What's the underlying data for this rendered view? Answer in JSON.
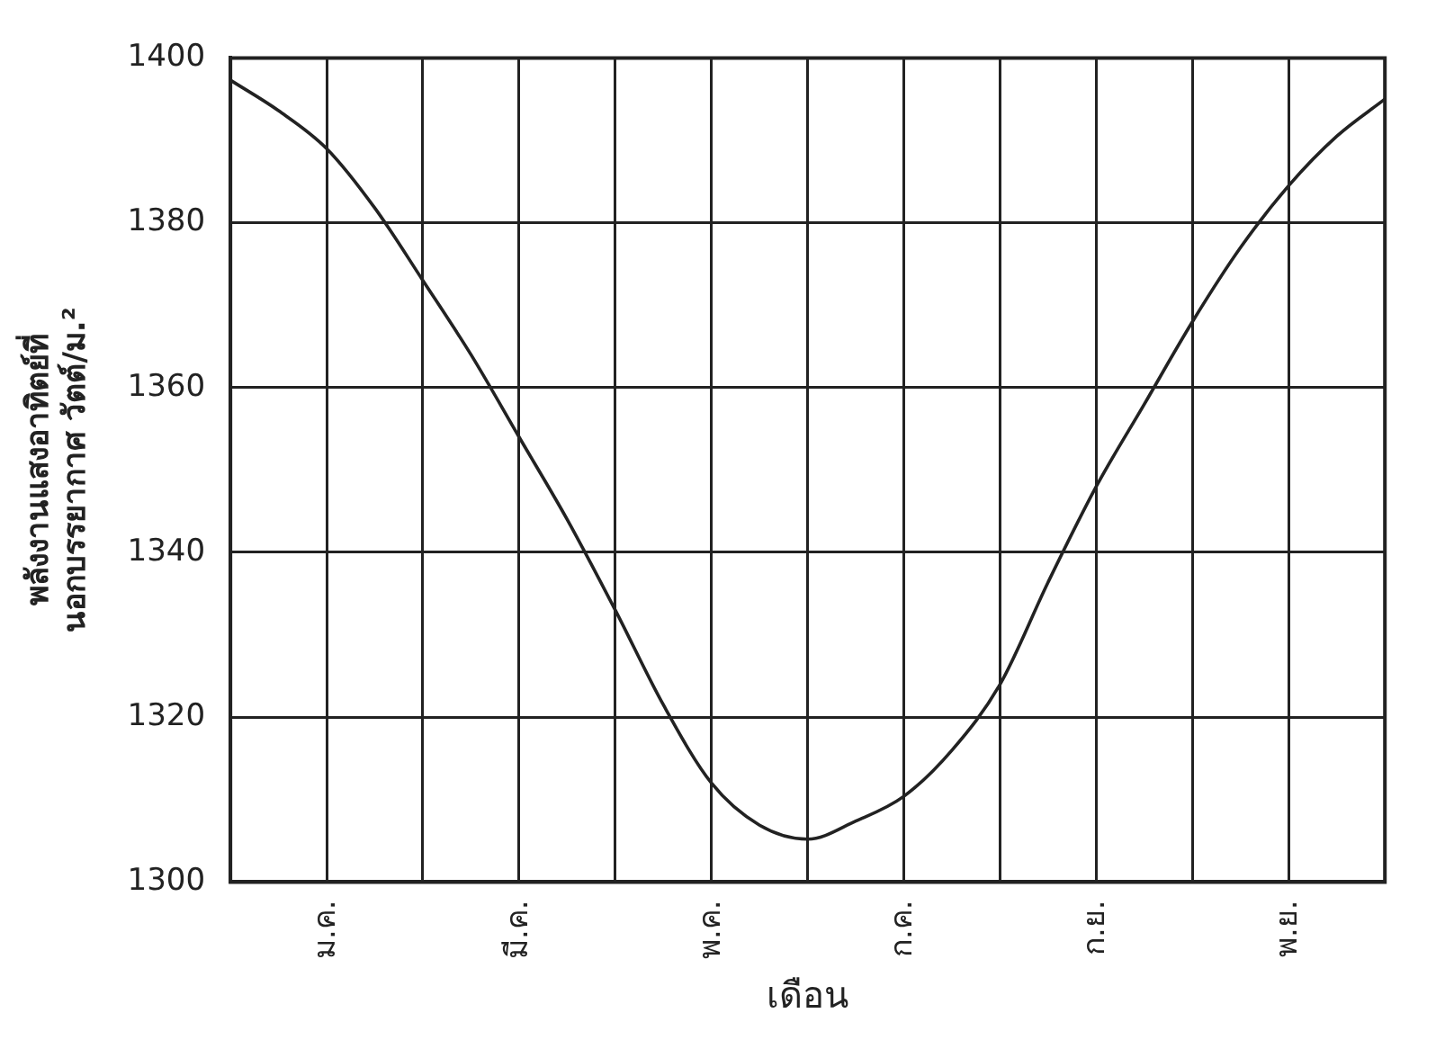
{
  "chart_data": {
    "type": "line",
    "xlabel": "เดือน",
    "ylabel": "พลังงานแสงอาทิตย์ที่\nนอกบรรยากาศ วัตต์/ม.²",
    "categories": [
      null,
      null,
      "ม.ค.",
      null,
      null,
      null,
      "มี.ค.",
      null,
      null,
      null,
      "พ.ค.",
      null,
      null,
      null,
      "ก.ค.",
      null,
      null,
      null,
      "ก.ย.",
      null,
      null,
      null,
      "พ.ย.",
      null,
      null
    ],
    "series": [
      {
        "color": "#222222",
        "values": [
          1397.3,
          1393.6,
          1389,
          1381.8,
          1373,
          1364,
          1354,
          1344,
          1333,
          1321.5,
          1312,
          1306.9,
          1305.2,
          1307.4,
          1310.4,
          1316,
          1324,
          1336.4,
          1348,
          1358,
          1368,
          1377,
          1384.5,
          1390.5,
          1395
        ]
      }
    ],
    "ylim": [
      1300,
      1400
    ],
    "yticks": [
      1300,
      1320,
      1340,
      1360,
      1380,
      1400
    ],
    "grid": true,
    "marker": "none",
    "line_style": "solid"
  }
}
